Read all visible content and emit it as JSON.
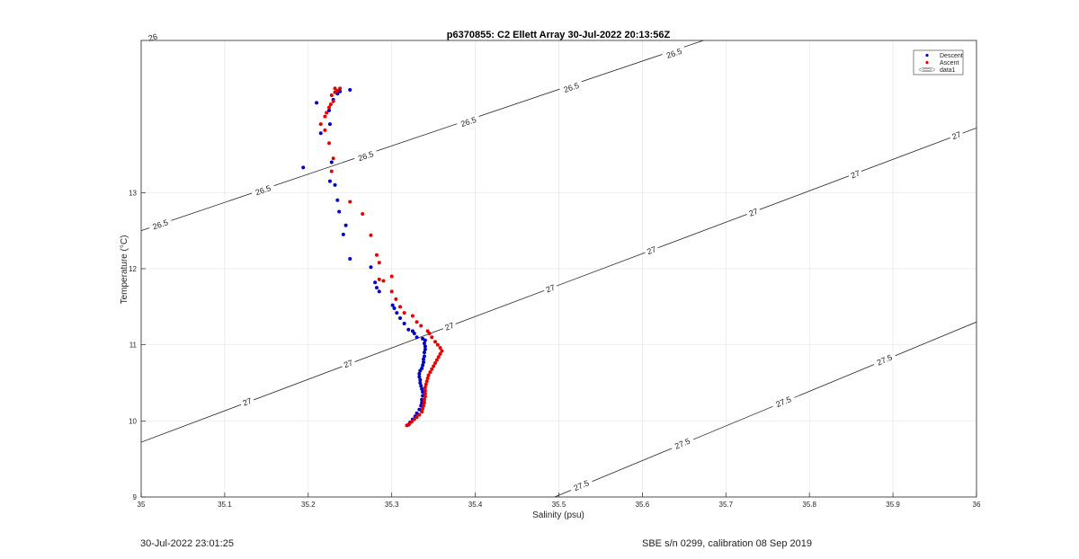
{
  "chart_data": {
    "type": "scatter",
    "title": "p6370855: C2 Ellett Array 30-Jul-2022 20:13:56Z",
    "xlabel": "Salinity (psu)",
    "ylabel": "Temperature (°C)",
    "xlim": [
      35,
      36
    ],
    "ylim": [
      9,
      15
    ],
    "xticks": [
      "35",
      "35.1",
      "35.2",
      "35.3",
      "35.4",
      "35.5",
      "35.6",
      "35.7",
      "35.8",
      "35.9",
      "36"
    ],
    "yticks": [
      "9",
      "10",
      "11",
      "12",
      "13"
    ],
    "grid": true,
    "legend_position": "top-right",
    "legend": [
      "Descent",
      "Ascent",
      "data1"
    ],
    "contour_labels": [
      "26",
      "26.5",
      "27",
      "27.5"
    ],
    "contours": [
      {
        "level": "26",
        "s0": 35.0,
        "t0": 15.0,
        "s1": 35.035,
        "t1": 15.1,
        "labels": [
          {
            "s": 35.014,
            "t": 15.04
          }
        ]
      },
      {
        "level": "26.5",
        "s0": 35.0,
        "t0": 12.5,
        "s1": 35.7,
        "t1": 15.1,
        "labels": [
          {
            "s": 35.023,
            "t": 12.58
          },
          {
            "s": 35.146,
            "t": 13.03
          },
          {
            "s": 35.269,
            "t": 13.48
          },
          {
            "s": 35.392,
            "t": 13.93
          },
          {
            "s": 35.515,
            "t": 14.38
          },
          {
            "s": 35.638,
            "t": 14.83
          }
        ]
      },
      {
        "level": "27",
        "s0": 35.0,
        "t0": 9.72,
        "s1": 36.0,
        "t1": 13.85,
        "labels": [
          {
            "s": 35.127,
            "t": 10.25
          },
          {
            "s": 35.248,
            "t": 10.75
          },
          {
            "s": 35.369,
            "t": 11.24
          },
          {
            "s": 35.49,
            "t": 11.74
          },
          {
            "s": 35.611,
            "t": 12.24
          },
          {
            "s": 35.733,
            "t": 12.74
          },
          {
            "s": 35.855,
            "t": 13.24
          },
          {
            "s": 35.976,
            "t": 13.75
          }
        ]
      },
      {
        "level": "27.5",
        "s0": 35.495,
        "t0": 9.0,
        "s1": 36.0,
        "t1": 11.3,
        "labels": [
          {
            "s": 35.527,
            "t": 9.15
          },
          {
            "s": 35.648,
            "t": 9.7
          },
          {
            "s": 35.769,
            "t": 10.25
          },
          {
            "s": 35.89,
            "t": 10.8
          }
        ]
      }
    ],
    "series": [
      {
        "name": "Descent",
        "color": "#0000cc",
        "points": [
          [
            35.32,
            9.95
          ],
          [
            35.322,
            9.98
          ],
          [
            35.325,
            10.02
          ],
          [
            35.328,
            10.06
          ],
          [
            35.33,
            10.1
          ],
          [
            35.333,
            10.15
          ],
          [
            35.335,
            10.2
          ],
          [
            35.336,
            10.24
          ],
          [
            35.336,
            10.28
          ],
          [
            35.337,
            10.33
          ],
          [
            35.337,
            10.38
          ],
          [
            35.336,
            10.42
          ],
          [
            35.335,
            10.46
          ],
          [
            35.334,
            10.5
          ],
          [
            35.334,
            10.54
          ],
          [
            35.333,
            10.58
          ],
          [
            35.333,
            10.62
          ],
          [
            35.334,
            10.66
          ],
          [
            35.336,
            10.69
          ],
          [
            35.337,
            10.73
          ],
          [
            35.338,
            10.77
          ],
          [
            35.338,
            10.81
          ],
          [
            35.339,
            10.85
          ],
          [
            35.339,
            10.9
          ],
          [
            35.34,
            10.94
          ],
          [
            35.34,
            10.98
          ],
          [
            35.339,
            11.02
          ],
          [
            35.34,
            11.06
          ],
          [
            35.337,
            11.08
          ],
          [
            35.33,
            11.1
          ],
          [
            35.327,
            11.15
          ],
          [
            35.325,
            11.18
          ],
          [
            35.32,
            11.2
          ],
          [
            35.315,
            11.28
          ],
          [
            35.31,
            11.35
          ],
          [
            35.306,
            11.42
          ],
          [
            35.303,
            11.48
          ],
          [
            35.301,
            11.52
          ],
          [
            35.285,
            11.7
          ],
          [
            35.282,
            11.75
          ],
          [
            35.28,
            11.82
          ],
          [
            35.275,
            12.02
          ],
          [
            35.25,
            12.13
          ],
          [
            35.242,
            12.45
          ],
          [
            35.245,
            12.57
          ],
          [
            35.237,
            12.75
          ],
          [
            35.235,
            12.9
          ],
          [
            35.232,
            13.1
          ],
          [
            35.226,
            13.15
          ],
          [
            35.194,
            13.33
          ],
          [
            35.228,
            13.4
          ],
          [
            35.215,
            13.78
          ],
          [
            35.226,
            13.9
          ],
          [
            35.225,
            14.08
          ],
          [
            35.21,
            14.18
          ],
          [
            35.23,
            14.22
          ],
          [
            35.235,
            14.3
          ],
          [
            35.238,
            14.33
          ],
          [
            35.25,
            14.35
          ]
        ]
      },
      {
        "name": "Ascent",
        "color": "#e60000",
        "points": [
          [
            35.318,
            9.94
          ],
          [
            35.321,
            9.96
          ],
          [
            35.324,
            9.99
          ],
          [
            35.327,
            10.02
          ],
          [
            35.33,
            10.05
          ],
          [
            35.333,
            10.08
          ],
          [
            35.336,
            10.12
          ],
          [
            35.337,
            10.16
          ],
          [
            35.338,
            10.2
          ],
          [
            35.339,
            10.24
          ],
          [
            35.339,
            10.28
          ],
          [
            35.34,
            10.32
          ],
          [
            35.34,
            10.36
          ],
          [
            35.34,
            10.4
          ],
          [
            35.34,
            10.44
          ],
          [
            35.341,
            10.48
          ],
          [
            35.342,
            10.52
          ],
          [
            35.343,
            10.56
          ],
          [
            35.344,
            10.6
          ],
          [
            35.346,
            10.64
          ],
          [
            35.348,
            10.68
          ],
          [
            35.35,
            10.72
          ],
          [
            35.352,
            10.76
          ],
          [
            35.354,
            10.8
          ],
          [
            35.356,
            10.84
          ],
          [
            35.358,
            10.88
          ],
          [
            35.36,
            10.92
          ],
          [
            35.358,
            10.96
          ],
          [
            35.355,
            11.0
          ],
          [
            35.352,
            11.04
          ],
          [
            35.348,
            11.1
          ],
          [
            35.345,
            11.15
          ],
          [
            35.343,
            11.18
          ],
          [
            35.335,
            11.25
          ],
          [
            35.33,
            11.3
          ],
          [
            35.325,
            11.38
          ],
          [
            35.315,
            11.42
          ],
          [
            35.31,
            11.5
          ],
          [
            35.305,
            11.6
          ],
          [
            35.3,
            11.7
          ],
          [
            35.3,
            11.9
          ],
          [
            35.29,
            11.84
          ],
          [
            35.285,
            11.86
          ],
          [
            35.285,
            12.08
          ],
          [
            35.282,
            12.18
          ],
          [
            35.275,
            12.44
          ],
          [
            35.265,
            12.72
          ],
          [
            35.25,
            12.88
          ],
          [
            35.228,
            13.28
          ],
          [
            35.23,
            13.45
          ],
          [
            35.225,
            13.65
          ],
          [
            35.22,
            13.82
          ],
          [
            35.215,
            13.9
          ],
          [
            35.22,
            14.0
          ],
          [
            35.222,
            14.05
          ],
          [
            35.225,
            14.12
          ],
          [
            35.227,
            14.16
          ],
          [
            35.23,
            14.2
          ],
          [
            35.228,
            14.28
          ],
          [
            35.232,
            14.32
          ],
          [
            35.235,
            14.34
          ],
          [
            35.232,
            14.37
          ],
          [
            35.238,
            14.37
          ]
        ]
      }
    ]
  },
  "footer": {
    "timestamp": "30-Jul-2022 23:01:25",
    "instrument": "SBE s/n 0299, calibration 08 Sep 2019"
  }
}
